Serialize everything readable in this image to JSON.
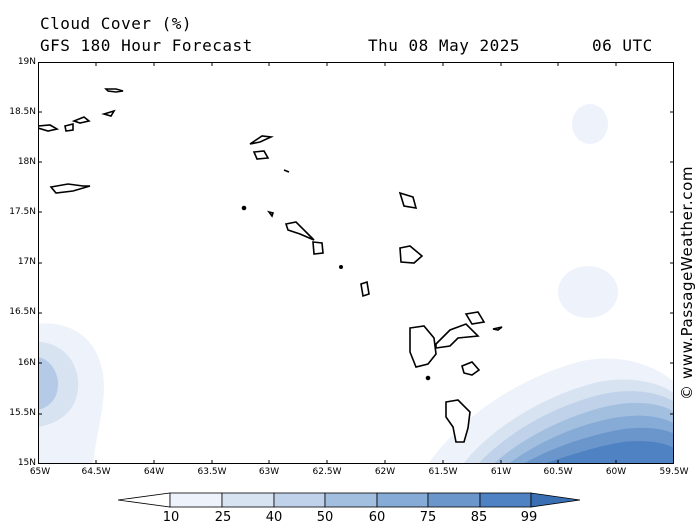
{
  "header": {
    "title": "Cloud Cover (%)",
    "subtitle": "GFS 180 Hour Forecast",
    "date": "Thu 08 May 2025",
    "time": "06 UTC"
  },
  "watermark": "© www.PassageWeather.com",
  "map": {
    "y_ticks": [
      "19N",
      "18.5N",
      "18N",
      "17.5N",
      "17N",
      "16.5N",
      "16N",
      "15.5N",
      "15N"
    ],
    "x_ticks": [
      "65W",
      "64.5W",
      "64W",
      "63.5W",
      "63W",
      "62.5W",
      "62W",
      "61.5W",
      "61W",
      "60.5W",
      "60W",
      "59.5W"
    ],
    "lat_range": [
      15,
      19
    ],
    "lon_range": [
      -65,
      -59.5
    ]
  },
  "legend": {
    "labels": [
      "10",
      "25",
      "40",
      "50",
      "60",
      "75",
      "85",
      "99"
    ],
    "colors": [
      "#ffffff",
      "#eef2fa",
      "#d8e3f2",
      "#c0d2ea",
      "#a3bfe0",
      "#86abd6",
      "#6a96cc",
      "#4f82c2",
      "#3a6fb4"
    ]
  }
}
